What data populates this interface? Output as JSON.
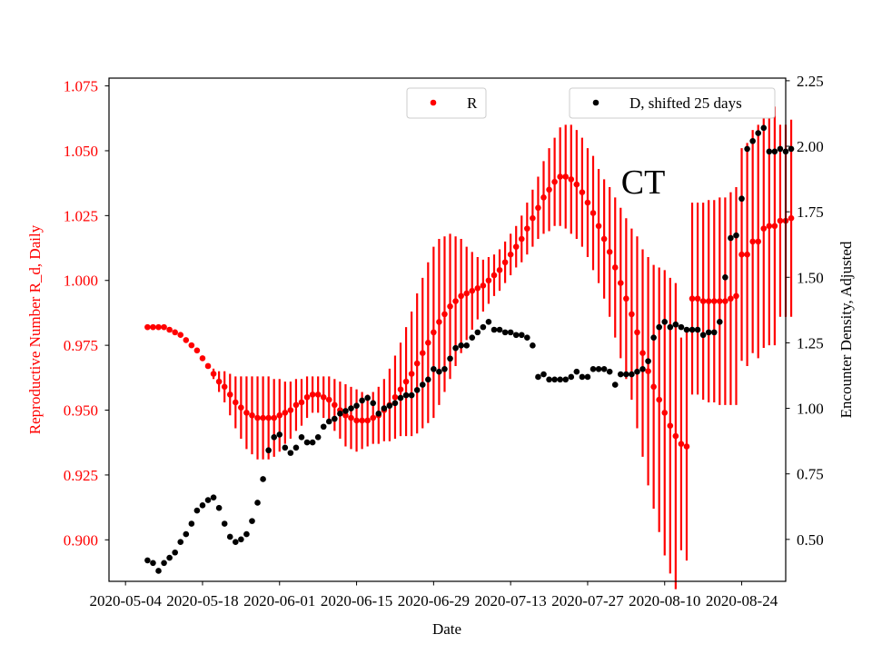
{
  "chart_data": {
    "type": "scatter",
    "annotation": "CT",
    "xlabel": "Date",
    "x_ticks": [
      "2020-05-04",
      "2020-05-18",
      "2020-06-01",
      "2020-06-15",
      "2020-06-29",
      "2020-07-13",
      "2020-07-27",
      "2020-08-10",
      "2020-08-24"
    ],
    "x_range": [
      "2020-05-01",
      "2020-09-01"
    ],
    "y_left": {
      "label": "Reproductive Number R_d, Daily",
      "range": [
        0.884,
        1.078
      ],
      "ticks": [
        "0.900",
        "0.925",
        "0.950",
        "0.975",
        "1.000",
        "1.025",
        "1.050",
        "1.075"
      ],
      "color": "#ff0000"
    },
    "y_right": {
      "label": "Encounter Density, Adjusted",
      "range": [
        0.34,
        2.26
      ],
      "ticks": [
        "0.50",
        "0.75",
        "1.00",
        "1.25",
        "1.50",
        "1.75",
        "2.00",
        "2.25"
      ],
      "color": "#000000"
    },
    "legends": [
      {
        "label": "R",
        "color": "#ff0000",
        "position": "top-center"
      },
      {
        "label": "D, shifted 25 days",
        "color": "#000000",
        "position": "top-right"
      }
    ],
    "series": [
      {
        "name": "R",
        "axis": "left",
        "color": "#ff0000",
        "x": [
          "2020-05-08",
          "2020-05-09",
          "2020-05-10",
          "2020-05-11",
          "2020-05-12",
          "2020-05-13",
          "2020-05-14",
          "2020-05-15",
          "2020-05-16",
          "2020-05-17",
          "2020-05-18",
          "2020-05-19",
          "2020-05-20",
          "2020-05-21",
          "2020-05-22",
          "2020-05-23",
          "2020-05-24",
          "2020-05-25",
          "2020-05-26",
          "2020-05-27",
          "2020-05-28",
          "2020-05-29",
          "2020-05-30",
          "2020-05-31",
          "2020-06-01",
          "2020-06-02",
          "2020-06-03",
          "2020-06-04",
          "2020-06-05",
          "2020-06-06",
          "2020-06-07",
          "2020-06-08",
          "2020-06-09",
          "2020-06-10",
          "2020-06-11",
          "2020-06-12",
          "2020-06-13",
          "2020-06-14",
          "2020-06-15",
          "2020-06-16",
          "2020-06-17",
          "2020-06-18",
          "2020-06-19",
          "2020-06-20",
          "2020-06-21",
          "2020-06-22",
          "2020-06-23",
          "2020-06-24",
          "2020-06-25",
          "2020-06-26",
          "2020-06-27",
          "2020-06-28",
          "2020-06-29",
          "2020-06-30",
          "2020-07-01",
          "2020-07-02",
          "2020-07-03",
          "2020-07-04",
          "2020-07-05",
          "2020-07-06",
          "2020-07-07",
          "2020-07-08",
          "2020-07-09",
          "2020-07-10",
          "2020-07-11",
          "2020-07-12",
          "2020-07-13",
          "2020-07-14",
          "2020-07-15",
          "2020-07-16",
          "2020-07-17",
          "2020-07-18",
          "2020-07-19",
          "2020-07-20",
          "2020-07-21",
          "2020-07-22",
          "2020-07-23",
          "2020-07-24",
          "2020-07-25",
          "2020-07-26",
          "2020-07-27",
          "2020-07-28",
          "2020-07-29",
          "2020-07-30",
          "2020-07-31",
          "2020-08-01",
          "2020-08-02",
          "2020-08-03",
          "2020-08-04",
          "2020-08-05",
          "2020-08-06",
          "2020-08-07",
          "2020-08-08",
          "2020-08-09",
          "2020-08-10",
          "2020-08-11",
          "2020-08-12",
          "2020-08-13",
          "2020-08-14",
          "2020-08-15",
          "2020-08-16",
          "2020-08-17",
          "2020-08-18",
          "2020-08-19",
          "2020-08-20",
          "2020-08-21",
          "2020-08-22",
          "2020-08-23",
          "2020-08-24",
          "2020-08-25",
          "2020-08-26",
          "2020-08-27",
          "2020-08-28",
          "2020-08-29",
          "2020-08-30",
          "2020-08-31",
          "2020-09-01",
          "2020-09-02"
        ],
        "y": [
          0.982,
          0.982,
          0.982,
          0.982,
          0.981,
          0.98,
          0.979,
          0.977,
          0.975,
          0.973,
          0.97,
          0.967,
          0.964,
          0.961,
          0.959,
          0.956,
          0.953,
          0.951,
          0.949,
          0.948,
          0.947,
          0.947,
          0.947,
          0.947,
          0.948,
          0.949,
          0.95,
          0.952,
          0.953,
          0.955,
          0.956,
          0.956,
          0.955,
          0.954,
          0.952,
          0.95,
          0.948,
          0.947,
          0.946,
          0.946,
          0.946,
          0.947,
          0.948,
          0.95,
          0.952,
          0.955,
          0.958,
          0.961,
          0.964,
          0.968,
          0.972,
          0.976,
          0.98,
          0.984,
          0.987,
          0.99,
          0.992,
          0.994,
          0.995,
          0.996,
          0.997,
          0.998,
          1.0,
          1.002,
          1.004,
          1.007,
          1.01,
          1.013,
          1.016,
          1.02,
          1.024,
          1.028,
          1.032,
          1.035,
          1.038,
          1.04,
          1.04,
          1.039,
          1.037,
          1.034,
          1.03,
          1.026,
          1.021,
          1.016,
          1.011,
          1.005,
          0.999,
          0.993,
          0.987,
          0.98,
          0.972,
          0.965,
          0.959,
          0.954,
          0.949,
          0.944,
          0.94,
          0.937,
          0.936,
          0.993,
          0.993,
          0.992,
          0.992,
          0.992,
          0.992,
          0.992,
          0.993,
          0.994,
          1.01,
          1.01,
          1.015,
          1.015,
          1.02,
          1.021,
          1.021,
          1.023,
          1.023,
          1.024
        ],
        "y_err": [
          0,
          0,
          0,
          0,
          0,
          0,
          0,
          0,
          0,
          0,
          0,
          0,
          0.002,
          0.004,
          0.006,
          0.008,
          0.01,
          0.012,
          0.014,
          0.015,
          0.016,
          0.016,
          0.016,
          0.015,
          0.014,
          0.012,
          0.011,
          0.01,
          0.009,
          0.008,
          0.007,
          0.007,
          0.008,
          0.009,
          0.01,
          0.011,
          0.012,
          0.012,
          0.012,
          0.011,
          0.01,
          0.01,
          0.011,
          0.012,
          0.014,
          0.016,
          0.018,
          0.021,
          0.024,
          0.027,
          0.029,
          0.031,
          0.033,
          0.032,
          0.03,
          0.028,
          0.025,
          0.022,
          0.018,
          0.015,
          0.012,
          0.01,
          0.009,
          0.008,
          0.008,
          0.008,
          0.008,
          0.008,
          0.009,
          0.01,
          0.011,
          0.012,
          0.014,
          0.016,
          0.017,
          0.019,
          0.02,
          0.021,
          0.021,
          0.021,
          0.021,
          0.022,
          0.022,
          0.023,
          0.025,
          0.027,
          0.029,
          0.031,
          0.033,
          0.037,
          0.04,
          0.044,
          0.047,
          0.051,
          0.055,
          0.057,
          0.059,
          0.041,
          0.044,
          0.037,
          0.037,
          0.038,
          0.039,
          0.039,
          0.04,
          0.04,
          0.041,
          0.042,
          0.041,
          0.043,
          0.043,
          0.045,
          0.046,
          0.046,
          0.046,
          0.037,
          0.037,
          0.038
        ]
      },
      {
        "name": "D, shifted 25 days",
        "axis": "right",
        "color": "#000000",
        "x": [
          "2020-05-08",
          "2020-05-09",
          "2020-05-10",
          "2020-05-11",
          "2020-05-12",
          "2020-05-13",
          "2020-05-14",
          "2020-05-15",
          "2020-05-16",
          "2020-05-17",
          "2020-05-18",
          "2020-05-19",
          "2020-05-20",
          "2020-05-21",
          "2020-05-22",
          "2020-05-23",
          "2020-05-24",
          "2020-05-25",
          "2020-05-26",
          "2020-05-27",
          "2020-05-28",
          "2020-05-29",
          "2020-05-30",
          "2020-05-31",
          "2020-06-01",
          "2020-06-02",
          "2020-06-03",
          "2020-06-04",
          "2020-06-05",
          "2020-06-06",
          "2020-06-07",
          "2020-06-08",
          "2020-06-09",
          "2020-06-10",
          "2020-06-11",
          "2020-06-12",
          "2020-06-13",
          "2020-06-14",
          "2020-06-15",
          "2020-06-16",
          "2020-06-17",
          "2020-06-18",
          "2020-06-19",
          "2020-06-20",
          "2020-06-21",
          "2020-06-22",
          "2020-06-23",
          "2020-06-24",
          "2020-06-25",
          "2020-06-26",
          "2020-06-27",
          "2020-06-28",
          "2020-06-29",
          "2020-06-30",
          "2020-07-01",
          "2020-07-02",
          "2020-07-03",
          "2020-07-04",
          "2020-07-05",
          "2020-07-06",
          "2020-07-07",
          "2020-07-08",
          "2020-07-09",
          "2020-07-10",
          "2020-07-11",
          "2020-07-12",
          "2020-07-13",
          "2020-07-14",
          "2020-07-15",
          "2020-07-16",
          "2020-07-17",
          "2020-07-18",
          "2020-07-19",
          "2020-07-20",
          "2020-07-21",
          "2020-07-22",
          "2020-07-23",
          "2020-07-24",
          "2020-07-25",
          "2020-07-26",
          "2020-07-27",
          "2020-07-28",
          "2020-07-29",
          "2020-07-30",
          "2020-07-31",
          "2020-08-01",
          "2020-08-02",
          "2020-08-03",
          "2020-08-04",
          "2020-08-05",
          "2020-08-06",
          "2020-08-07",
          "2020-08-08",
          "2020-08-09",
          "2020-08-10",
          "2020-08-11",
          "2020-08-12",
          "2020-08-13",
          "2020-08-14",
          "2020-08-15",
          "2020-08-16",
          "2020-08-17",
          "2020-08-18",
          "2020-08-19",
          "2020-08-20",
          "2020-08-21",
          "2020-08-22",
          "2020-08-23",
          "2020-08-24",
          "2020-08-25",
          "2020-08-26",
          "2020-08-27",
          "2020-08-28",
          "2020-08-29",
          "2020-08-30",
          "2020-08-31",
          "2020-09-01",
          "2020-09-02"
        ],
        "y": [
          0.42,
          0.41,
          0.38,
          0.41,
          0.43,
          0.45,
          0.49,
          0.52,
          0.56,
          0.61,
          0.63,
          0.65,
          0.66,
          0.62,
          0.56,
          0.51,
          0.49,
          0.5,
          0.52,
          0.57,
          0.64,
          0.73,
          0.84,
          0.89,
          0.9,
          0.85,
          0.83,
          0.85,
          0.89,
          0.87,
          0.87,
          0.89,
          0.93,
          0.95,
          0.96,
          0.98,
          0.99,
          1.0,
          1.01,
          1.03,
          1.04,
          1.02,
          0.98,
          1.0,
          1.01,
          1.02,
          1.04,
          1.05,
          1.05,
          1.07,
          1.09,
          1.11,
          1.15,
          1.14,
          1.15,
          1.19,
          1.23,
          1.24,
          1.24,
          1.27,
          1.29,
          1.31,
          1.33,
          1.3,
          1.3,
          1.29,
          1.29,
          1.28,
          1.28,
          1.27,
          1.24,
          1.12,
          1.13,
          1.11,
          1.11,
          1.11,
          1.11,
          1.12,
          1.14,
          1.12,
          1.12,
          1.15,
          1.15,
          1.15,
          1.14,
          1.09,
          1.13,
          1.13,
          1.13,
          1.14,
          1.15,
          1.18,
          1.27,
          1.31,
          1.33,
          1.31,
          1.32,
          1.31,
          1.3,
          1.3,
          1.3,
          1.28,
          1.29,
          1.29,
          1.33,
          1.5,
          1.65,
          1.66,
          1.8,
          1.99,
          2.02,
          2.05,
          2.07,
          1.98,
          1.98,
          1.99,
          1.98,
          1.99
        ]
      }
    ]
  }
}
